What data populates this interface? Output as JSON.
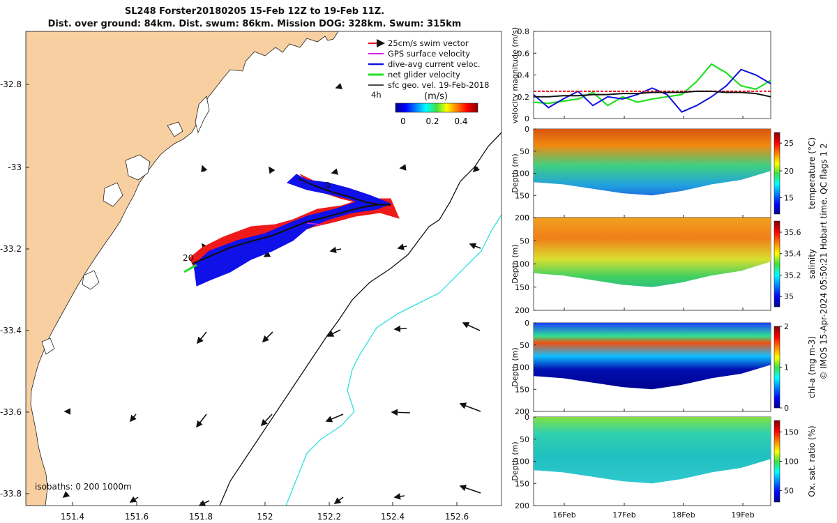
{
  "header": {
    "title_line1": "SL248 Forster20180205 15-Feb 12Z to 19-Feb 11Z.",
    "title_line2": "Dist. over ground: 84km. Dist. swum: 86km. Mission DOG: 328km. Swum: 315km"
  },
  "map": {
    "lon_ticks": [
      "151.4",
      "151.6",
      "151.8",
      "152",
      "152.2",
      "152.4",
      "152.6"
    ],
    "lat_ticks": [
      "-32.8",
      "-33",
      "-33.2",
      "-33.4",
      "-33.6",
      "-33.8"
    ],
    "legend": [
      {
        "label": "25cm/s swim vector",
        "color": "#e8101a"
      },
      {
        "label": "GPS surface velocity",
        "color": "#e020e0"
      },
      {
        "label": "dive-avg current veloc.",
        "color": "#1010e0"
      },
      {
        "label": "net glider velocity",
        "color": "#20e020"
      },
      {
        "label": "sfc geo. vel. 19-Feb-2018",
        "color": "#111111"
      }
    ],
    "colorbar_unit": "(m/s)",
    "colorbar_ticks": [
      "0",
      "0.2",
      "0.4"
    ],
    "label_4h": "4h",
    "label_start": "20",
    "label_end": "0",
    "isobaths": "isobaths: 0   200  1000m",
    "colors": {
      "land": "#f8cfa0",
      "isobath200": "#111111",
      "isobath1000": "#30e0e0"
    }
  },
  "chart_data": [
    {
      "type": "line",
      "panel": "velocity",
      "ylabel": "velocity magnitude (m/s)",
      "ylim": [
        0,
        0.8
      ],
      "yticks": [
        "0",
        "0.2",
        "0.4",
        "0.6",
        "0.8"
      ],
      "xlim": [
        15.5,
        19.5
      ],
      "series": [
        {
          "name": "net glider velocity",
          "color": "#20e020",
          "x": [
            15.5,
            15.75,
            16.0,
            16.25,
            16.5,
            16.75,
            17.0,
            17.25,
            17.5,
            17.75,
            18.0,
            18.25,
            18.5,
            18.75,
            19.0,
            19.25,
            19.5
          ],
          "y": [
            0.15,
            0.14,
            0.16,
            0.18,
            0.24,
            0.12,
            0.2,
            0.15,
            0.18,
            0.2,
            0.22,
            0.34,
            0.5,
            0.42,
            0.3,
            0.27,
            0.35
          ]
        },
        {
          "name": "dive-avg current veloc.",
          "color": "#1010e0",
          "x": [
            15.5,
            15.75,
            16.0,
            16.25,
            16.5,
            16.75,
            17.0,
            17.25,
            17.5,
            17.75,
            18.0,
            18.25,
            18.5,
            18.75,
            19.0,
            19.25,
            19.5
          ],
          "y": [
            0.22,
            0.1,
            0.18,
            0.25,
            0.12,
            0.2,
            0.18,
            0.22,
            0.28,
            0.22,
            0.06,
            0.12,
            0.2,
            0.3,
            0.45,
            0.4,
            0.32
          ]
        },
        {
          "name": "25cm/s swim vector",
          "color": "#e8101a",
          "x": [
            15.5,
            19.5
          ],
          "y": [
            0.25,
            0.25
          ]
        },
        {
          "name": "sfc geo. vel.",
          "color": "#111111",
          "x": [
            15.5,
            15.75,
            16.0,
            16.25,
            16.5,
            16.75,
            17.0,
            17.25,
            17.5,
            17.75,
            18.0,
            18.25,
            18.5,
            18.75,
            19.0,
            19.25,
            19.5
          ],
          "y": [
            0.2,
            0.2,
            0.21,
            0.21,
            0.22,
            0.22,
            0.23,
            0.23,
            0.24,
            0.24,
            0.24,
            0.25,
            0.25,
            0.24,
            0.24,
            0.23,
            0.2
          ]
        }
      ]
    },
    {
      "type": "heatmap",
      "panel": "temperature",
      "ylabel": "Depth (m)",
      "ylim": [
        200,
        0
      ],
      "yticks": [
        "0",
        "50",
        "100",
        "150",
        "200"
      ],
      "colorbar_label": "temperature (°C)",
      "colorbar_ticks": [
        "15",
        "20",
        "25"
      ],
      "crange": [
        12,
        27
      ],
      "x": [
        15.5,
        16.0,
        16.5,
        17.0,
        17.5,
        18.0,
        18.5,
        19.0,
        19.5
      ],
      "max_depth": [
        120,
        125,
        135,
        145,
        150,
        140,
        125,
        115,
        95
      ]
    },
    {
      "type": "heatmap",
      "panel": "salinity",
      "ylabel": "Depth (m)",
      "ylim": [
        200,
        0
      ],
      "yticks": [
        "0",
        "50",
        "100",
        "150",
        "200"
      ],
      "colorbar_label": "salinity",
      "colorbar_ticks": [
        "35",
        "35.2",
        "35.4",
        "35.6"
      ],
      "crange": [
        34.9,
        35.7
      ],
      "x": [
        15.5,
        16.0,
        16.5,
        17.0,
        17.5,
        18.0,
        18.5,
        19.0,
        19.5
      ],
      "max_depth": [
        120,
        125,
        135,
        145,
        150,
        140,
        125,
        115,
        95
      ]
    },
    {
      "type": "heatmap",
      "panel": "chl-a",
      "ylabel": "Depth (m)",
      "ylim": [
        200,
        0
      ],
      "yticks": [
        "0",
        "50",
        "100",
        "150",
        "200"
      ],
      "colorbar_label": "chl-a (mg m-3)",
      "colorbar_ticks": [
        "0",
        "1",
        "2"
      ],
      "crange": [
        0,
        2
      ],
      "x": [
        15.5,
        16.0,
        16.5,
        17.0,
        17.5,
        18.0,
        18.5,
        19.0,
        19.5
      ],
      "max_depth": [
        120,
        125,
        135,
        145,
        150,
        140,
        125,
        115,
        95
      ]
    },
    {
      "type": "heatmap",
      "panel": "oxygen",
      "ylabel": "Depth (m)",
      "ylim": [
        200,
        0
      ],
      "yticks": [
        "0",
        "50",
        "100",
        "150",
        "200"
      ],
      "colorbar_label": "Ox. sat. ratio (%)",
      "colorbar_ticks": [
        "50",
        "100",
        "150"
      ],
      "crange": [
        30,
        170
      ],
      "x": [
        15.5,
        16.0,
        16.5,
        17.0,
        17.5,
        18.0,
        18.5,
        19.0,
        19.5
      ],
      "max_depth": [
        120,
        125,
        135,
        145,
        150,
        140,
        125,
        115,
        95
      ]
    }
  ],
  "time_axis": {
    "ticks": [
      "16Feb",
      "17Feb",
      "18Feb",
      "19Feb"
    ]
  },
  "side_note": "© IMOS 15-Apr-2024 05:50:21 Hobart time. QC flags 1  2"
}
